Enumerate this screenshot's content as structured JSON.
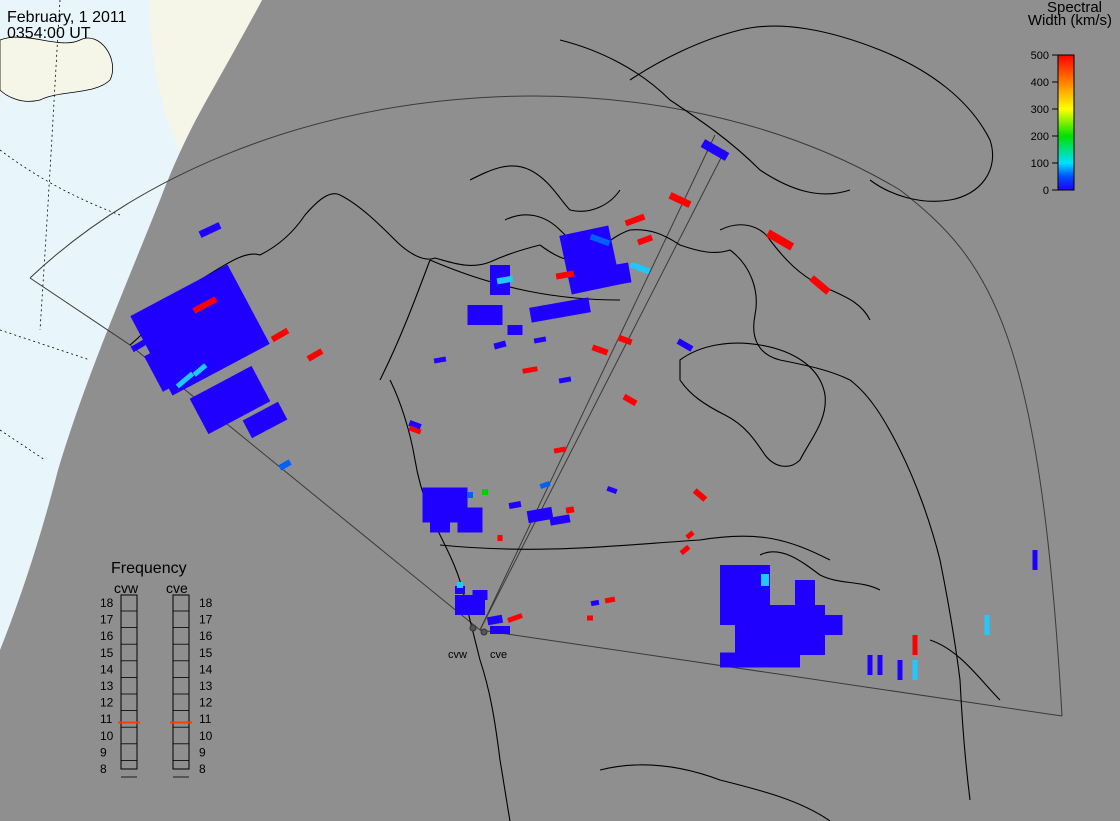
{
  "header": {
    "date": "February, 1 2011",
    "time": "0354:00 UT"
  },
  "colorbar": {
    "title_line1": "Spectral",
    "title_line2": "Width (km/s)",
    "min": 0,
    "max": 500,
    "tick_labels": [
      "500",
      "400",
      "300",
      "200",
      "100",
      "0"
    ],
    "colors": [
      "#ff0000",
      "#ff8000",
      "#ffff00",
      "#00e000",
      "#00e0ff",
      "#0050ff",
      "#1f00ff"
    ]
  },
  "frequency_panel": {
    "title": "Frequency",
    "radars": [
      {
        "code": "cvw",
        "frequency_mhz": 10.8
      },
      {
        "code": "cve",
        "frequency_mhz": 10.8
      }
    ],
    "scale_labels": [
      "18",
      "17",
      "16",
      "15",
      "14",
      "13",
      "12",
      "11",
      "10",
      "9",
      "8"
    ],
    "scale_min": 8,
    "scale_max": 18,
    "marker_color": "#ff3b00"
  },
  "sites": [
    {
      "code": "cvw",
      "label": "cvw"
    },
    {
      "code": "cve",
      "label": "cve"
    }
  ],
  "colors": {
    "ocean": "#8f8f8f",
    "land_background": "#8f8f8f",
    "daylight_region": "#e8f6fc",
    "terminator_band": "#f5f5e8",
    "coastline": "#000000",
    "fov_outline": "#3a3a3a"
  }
}
